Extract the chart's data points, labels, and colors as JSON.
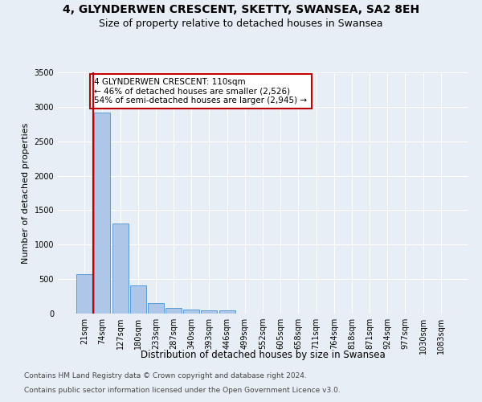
{
  "title1": "4, GLYNDERWEN CRESCENT, SKETTY, SWANSEA, SA2 8EH",
  "title2": "Size of property relative to detached houses in Swansea",
  "xlabel": "Distribution of detached houses by size in Swansea",
  "ylabel": "Number of detached properties",
  "footnote1": "Contains HM Land Registry data © Crown copyright and database right 2024.",
  "footnote2": "Contains public sector information licensed under the Open Government Licence v3.0.",
  "categories": [
    "21sqm",
    "74sqm",
    "127sqm",
    "180sqm",
    "233sqm",
    "287sqm",
    "340sqm",
    "393sqm",
    "446sqm",
    "499sqm",
    "552sqm",
    "605sqm",
    "658sqm",
    "711sqm",
    "764sqm",
    "818sqm",
    "871sqm",
    "924sqm",
    "977sqm",
    "1030sqm",
    "1083sqm"
  ],
  "values": [
    570,
    2920,
    1310,
    410,
    155,
    80,
    55,
    50,
    45,
    0,
    0,
    0,
    0,
    0,
    0,
    0,
    0,
    0,
    0,
    0,
    0
  ],
  "bar_color": "#aec6e8",
  "bar_edge_color": "#5b9bd5",
  "annotation_text": "4 GLYNDERWEN CRESCENT: 110sqm\n← 46% of detached houses are smaller (2,526)\n54% of semi-detached houses are larger (2,945) →",
  "annotation_box_color": "#ffffff",
  "annotation_box_edge_color": "#c00000",
  "vline_color": "#c00000",
  "ylim": [
    0,
    3500
  ],
  "yticks": [
    0,
    500,
    1000,
    1500,
    2000,
    2500,
    3000,
    3500
  ],
  "bg_color": "#e8eef5",
  "plot_bg_color": "#e8eef5",
  "grid_color": "#ffffff",
  "title1_fontsize": 10,
  "title2_fontsize": 9,
  "xlabel_fontsize": 8.5,
  "ylabel_fontsize": 8,
  "tick_fontsize": 7,
  "annotation_fontsize": 7.5,
  "footnote_fontsize": 6.5
}
